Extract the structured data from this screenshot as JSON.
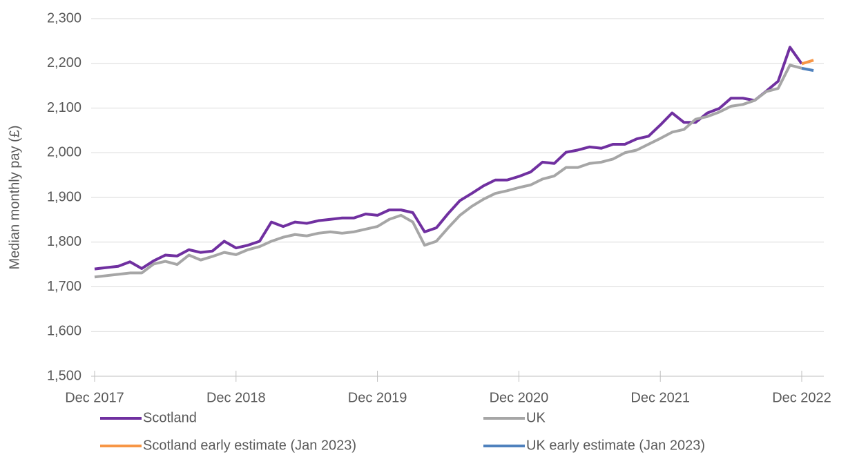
{
  "chart_data": {
    "type": "line",
    "y_label": "Median monthly pay (£)",
    "categories": [
      "Dec 2017",
      null,
      null,
      null,
      null,
      null,
      null,
      null,
      null,
      null,
      null,
      null,
      "Dec 2018",
      null,
      null,
      null,
      null,
      null,
      null,
      null,
      null,
      null,
      null,
      null,
      "Dec 2019",
      null,
      null,
      null,
      null,
      null,
      null,
      null,
      null,
      null,
      null,
      null,
      "Dec 2020",
      null,
      null,
      null,
      null,
      null,
      null,
      null,
      null,
      null,
      null,
      null,
      "Dec 2021",
      null,
      null,
      null,
      null,
      null,
      null,
      null,
      null,
      null,
      null,
      null,
      "Dec 2022",
      null
    ],
    "series": [
      {
        "name": "Scotland",
        "color": "#7030a0",
        "values": [
          1740,
          1743,
          1746,
          1756,
          1741,
          1758,
          1771,
          1769,
          1783,
          1777,
          1780,
          1802,
          1787,
          1793,
          1802,
          1845,
          1835,
          1845,
          1842,
          1848,
          1851,
          1854,
          1854,
          1863,
          1860,
          1872,
          1872,
          1866,
          1823,
          1832,
          1864,
          1893,
          1909,
          1926,
          1939,
          1939,
          1947,
          1957,
          1979,
          1976,
          2001,
          2006,
          2013,
          2010,
          2019,
          2019,
          2031,
          2037,
          2062,
          2089,
          2068,
          2068,
          2089,
          2099,
          2122,
          2122,
          2117,
          2138,
          2160,
          2236,
          2199,
          null
        ]
      },
      {
        "name": "UK",
        "color": "#a6a6a6",
        "values": [
          1722,
          1725,
          1728,
          1731,
          1731,
          1751,
          1757,
          1750,
          1771,
          1760,
          1768,
          1777,
          1772,
          1783,
          1790,
          1802,
          1811,
          1817,
          1814,
          1820,
          1823,
          1820,
          1823,
          1829,
          1835,
          1851,
          1860,
          1845,
          1793,
          1802,
          1832,
          1860,
          1880,
          1896,
          1909,
          1915,
          1922,
          1928,
          1941,
          1948,
          1967,
          1967,
          1976,
          1979,
          1986,
          2000,
          2006,
          2019,
          2032,
          2046,
          2052,
          2075,
          2081,
          2091,
          2104,
          2108,
          2117,
          2137,
          2144,
          2196,
          2189,
          null
        ]
      },
      {
        "name": "Scotland early estimate (Jan 2023)",
        "color": "#f79646",
        "values": [
          null,
          null,
          null,
          null,
          null,
          null,
          null,
          null,
          null,
          null,
          null,
          null,
          null,
          null,
          null,
          null,
          null,
          null,
          null,
          null,
          null,
          null,
          null,
          null,
          null,
          null,
          null,
          null,
          null,
          null,
          null,
          null,
          null,
          null,
          null,
          null,
          null,
          null,
          null,
          null,
          null,
          null,
          null,
          null,
          null,
          null,
          null,
          null,
          null,
          null,
          null,
          null,
          null,
          null,
          null,
          null,
          null,
          null,
          null,
          null,
          2199,
          2207
        ]
      },
      {
        "name": "UK early estimate (Jan 2023)",
        "color": "#4f81bd",
        "values": [
          null,
          null,
          null,
          null,
          null,
          null,
          null,
          null,
          null,
          null,
          null,
          null,
          null,
          null,
          null,
          null,
          null,
          null,
          null,
          null,
          null,
          null,
          null,
          null,
          null,
          null,
          null,
          null,
          null,
          null,
          null,
          null,
          null,
          null,
          null,
          null,
          null,
          null,
          null,
          null,
          null,
          null,
          null,
          null,
          null,
          null,
          null,
          null,
          null,
          null,
          null,
          null,
          null,
          null,
          null,
          null,
          null,
          null,
          null,
          null,
          2189,
          2184
        ]
      }
    ],
    "ylim": [
      1500,
      2300
    ],
    "yticks": [
      {
        "value": 1500,
        "label": "1,500"
      },
      {
        "value": 1600,
        "label": "1,600"
      },
      {
        "value": 1700,
        "label": "1,700"
      },
      {
        "value": 1800,
        "label": "1,800"
      },
      {
        "value": 1900,
        "label": "1,900"
      },
      {
        "value": 2000,
        "label": "2,000"
      },
      {
        "value": 2100,
        "label": "2,100"
      },
      {
        "value": 2200,
        "label": "2,200"
      },
      {
        "value": 2300,
        "label": "2,300"
      }
    ],
    "grid": true
  }
}
